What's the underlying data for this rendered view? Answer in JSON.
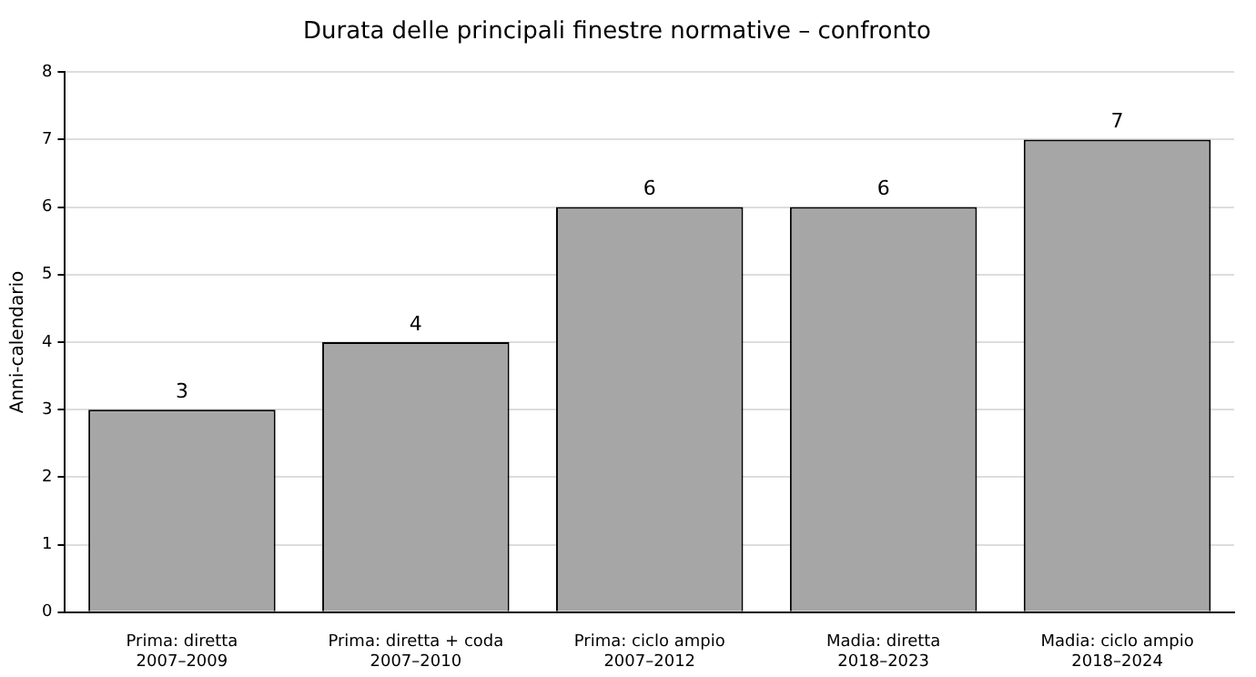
{
  "chart_data": {
    "type": "bar",
    "title": "Durata delle principali finestre normative – confronto",
    "ylabel": "Anni-calendario",
    "categories": [
      "Prima: diretta\n2007–2009",
      "Prima: diretta + coda\n2007–2010",
      "Prima: ciclo ampio\n2007–2012",
      "Madia: diretta\n2018–2023",
      "Madia: ciclo ampio\n2018–2024"
    ],
    "values": [
      3,
      4,
      6,
      6,
      7
    ],
    "color": "#a6a6a6",
    "ylim": [
      0,
      8
    ],
    "yticks": [
      0,
      1,
      2,
      3,
      4,
      5,
      6,
      7,
      8
    ],
    "grid": "y",
    "data_labels": true,
    "legend": false
  }
}
